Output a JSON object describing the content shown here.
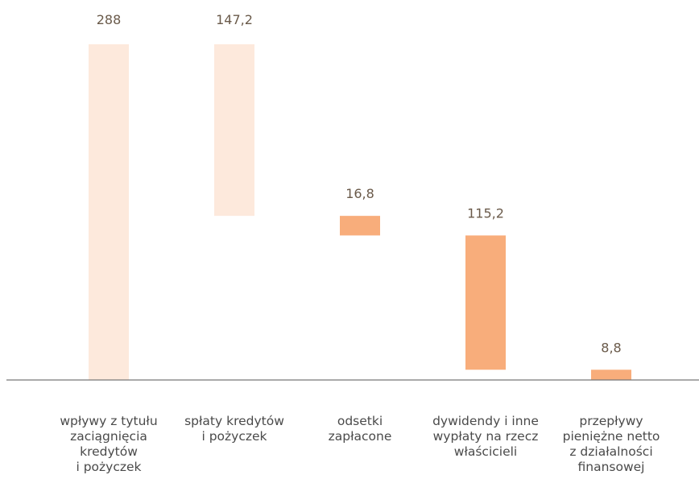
{
  "chart_data": {
    "type": "bar",
    "subtype": "waterfall",
    "categories": [
      [
        "wpływy z tytułu",
        "zaciągnięcia",
        "kredytów",
        "i pożyczek"
      ],
      [
        "spłaty kredytów",
        "i pożyczek"
      ],
      [
        "odsetki",
        "zapłacone"
      ],
      [
        "dywidendy i inne",
        "wypłaty na rzecz",
        "właścicieli"
      ],
      [
        "przepływy",
        "pieniężne netto",
        "z działalności",
        "finansowej"
      ]
    ],
    "values": [
      288,
      -147.2,
      -16.8,
      -115.2,
      8.8
    ],
    "value_labels": [
      "288",
      "147,2",
      "16,8",
      "115,2",
      "8,8"
    ],
    "ylim": [
      0,
      288
    ],
    "grid": false,
    "colors": {
      "increase": "#fde9dc",
      "decrease": "#f8ad7b",
      "total": "#f8ad7b",
      "baseline": "#777777",
      "value_text": "#6a5a4a",
      "category_text": "#4a4a4a"
    }
  }
}
